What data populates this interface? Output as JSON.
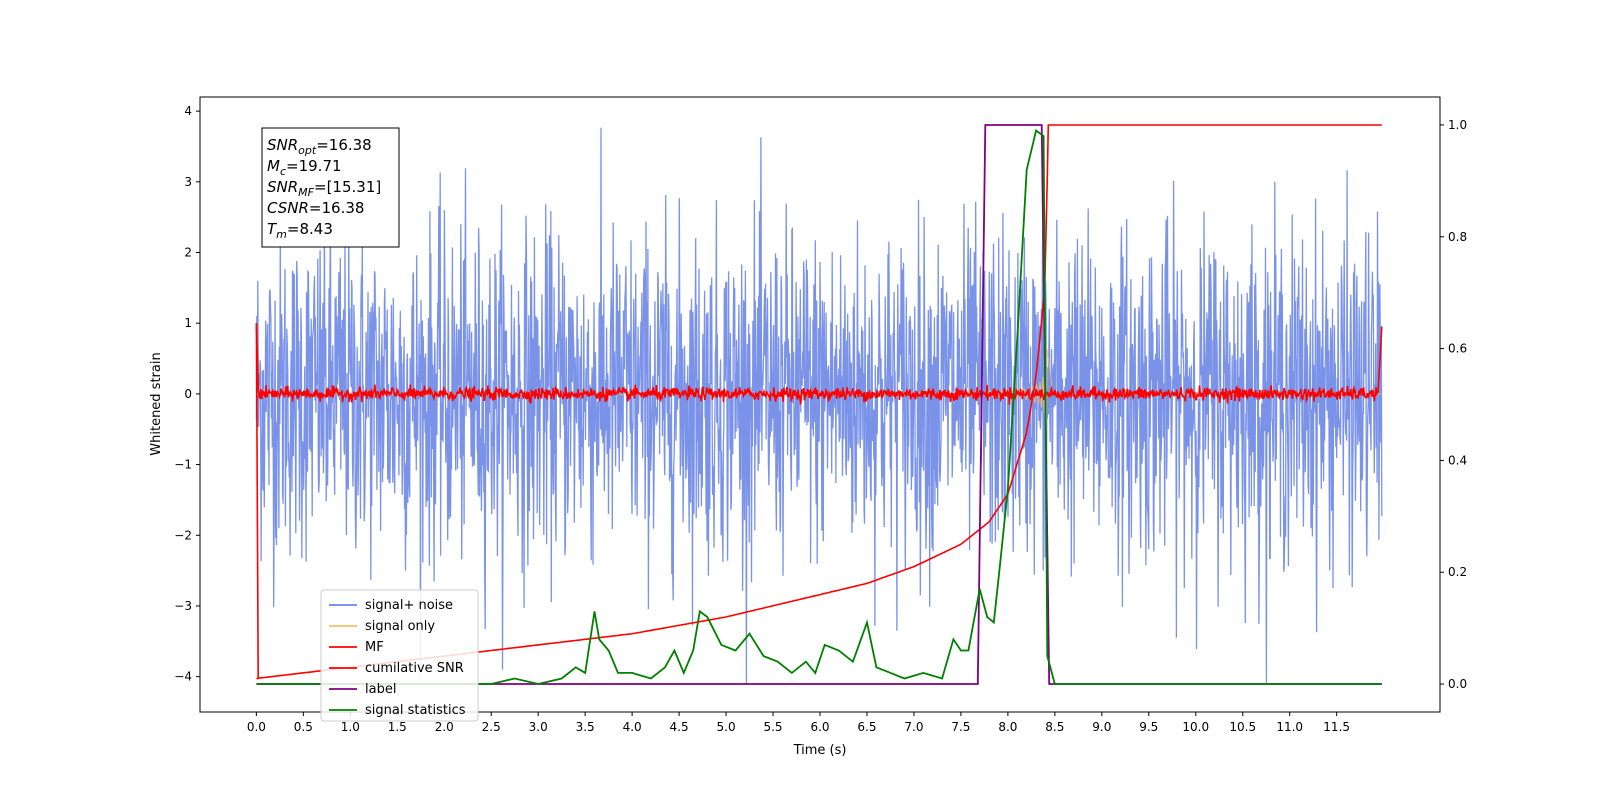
{
  "chart_data": {
    "type": "line",
    "title": "",
    "xlabel": "Time (s)",
    "ylabel": "Whitened strain",
    "xlim": [
      -0.6,
      12.6
    ],
    "ylim": [
      -4.5,
      4.2
    ],
    "y2lim": [
      -0.05,
      1.05
    ],
    "grid": false,
    "legend_position": "lower-left",
    "x_ticks": [
      "0.0",
      "0.5",
      "1.0",
      "1.5",
      "2.0",
      "2.5",
      "3.0",
      "3.5",
      "4.0",
      "4.5",
      "5.0",
      "5.5",
      "6.0",
      "6.5",
      "7.0",
      "7.5",
      "8.0",
      "8.5",
      "9.0",
      "9.5",
      "10.0",
      "10.5",
      "11.0",
      "11.5"
    ],
    "y_ticks": [
      "4",
      "3",
      "2",
      "1",
      "0",
      "−1",
      "−2",
      "−3",
      "−4"
    ],
    "y2_ticks": [
      "1.0",
      "0.8",
      "0.6",
      "0.4",
      "0.2",
      "0.0"
    ],
    "annotation": [
      {
        "base": "SNR",
        "sub": "opt",
        "rest": "=16.38"
      },
      {
        "base": "M",
        "sub": "c",
        "rest": "=19.71"
      },
      {
        "base": "SNR",
        "sub": "MF",
        "rest": "=[15.31]"
      },
      {
        "base": "CSNR",
        "sub": "",
        "rest": "=16.38"
      },
      {
        "base": "T",
        "sub": "m",
        "rest": "=8.43"
      }
    ],
    "series": [
      {
        "name": "signal+ noise",
        "color": "#6b87e6",
        "axis": "left",
        "description_only": true
      },
      {
        "name": "signal only",
        "color": "#f5c16e",
        "axis": "left",
        "chirp_end": 8.43
      },
      {
        "name": "MF",
        "color": "#ff0000",
        "axis": "left"
      },
      {
        "name": "cumilative SNR",
        "color": "#ff0000",
        "axis": "right",
        "x": [
          0.0,
          1.0,
          2.0,
          3.0,
          4.0,
          5.0,
          5.5,
          6.0,
          6.5,
          7.0,
          7.5,
          7.8,
          8.0,
          8.2,
          8.3,
          8.4,
          8.43,
          11.98
        ],
        "values": [
          0.01,
          0.03,
          0.05,
          0.07,
          0.09,
          0.12,
          0.14,
          0.16,
          0.18,
          0.21,
          0.25,
          0.29,
          0.34,
          0.45,
          0.55,
          0.72,
          1.0,
          1.0
        ]
      },
      {
        "name": "label",
        "color": "#800080",
        "axis": "right",
        "x": [
          0.0,
          7.68,
          7.76,
          8.36,
          8.44,
          11.98
        ],
        "values": [
          0.0,
          0.0,
          1.0,
          1.0,
          0.0,
          0.0
        ]
      },
      {
        "name": "signal statistics",
        "color": "#008000",
        "axis": "right",
        "x": [
          0.0,
          1.0,
          2.0,
          2.5,
          2.75,
          3.0,
          3.25,
          3.4,
          3.5,
          3.6,
          3.65,
          3.75,
          3.85,
          4.0,
          4.2,
          4.35,
          4.45,
          4.55,
          4.65,
          4.72,
          4.8,
          4.95,
          5.1,
          5.25,
          5.4,
          5.55,
          5.7,
          5.85,
          5.95,
          6.05,
          6.2,
          6.35,
          6.5,
          6.6,
          6.75,
          6.9,
          7.1,
          7.3,
          7.42,
          7.5,
          7.58,
          7.7,
          7.78,
          7.85,
          7.92,
          8.0,
          8.1,
          8.2,
          8.3,
          8.38,
          8.42,
          8.5,
          11.98
        ],
        "values": [
          0.0,
          0.0,
          0.0,
          0.0,
          0.01,
          0.0,
          0.01,
          0.03,
          0.02,
          0.13,
          0.08,
          0.06,
          0.02,
          0.02,
          0.01,
          0.03,
          0.06,
          0.02,
          0.06,
          0.13,
          0.12,
          0.07,
          0.06,
          0.09,
          0.05,
          0.04,
          0.02,
          0.04,
          0.02,
          0.07,
          0.06,
          0.04,
          0.11,
          0.03,
          0.02,
          0.01,
          0.02,
          0.01,
          0.08,
          0.06,
          0.06,
          0.17,
          0.12,
          0.11,
          0.22,
          0.35,
          0.62,
          0.92,
          0.99,
          0.98,
          0.05,
          0.0,
          0.0
        ]
      }
    ]
  }
}
